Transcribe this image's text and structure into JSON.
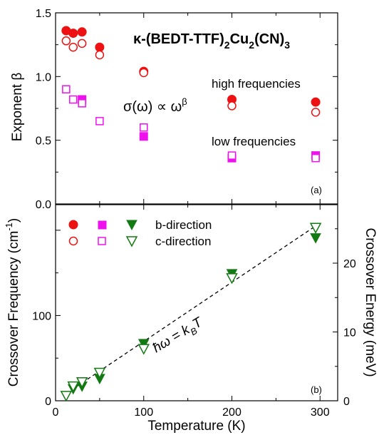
{
  "chart_data": [
    {
      "type": "scatter",
      "panel_label": "(a)",
      "title": "κ-(BEDT-TTF)",
      "title_sub1": "2",
      "title_mid": "Cu",
      "title_sub2": "2",
      "title_tail": "(CN)",
      "title_sub3": "3",
      "ylabel": "Exponent β",
      "ylim": [
        0,
        1.5
      ],
      "yticks": [
        0.0,
        0.5,
        1.0,
        1.5
      ],
      "ytick_labels": [
        "0.0",
        "0.5",
        "1.0",
        "1.5"
      ],
      "xlim": [
        0,
        320
      ],
      "annotations": {
        "high": "high frequencies",
        "low": "low frequencies",
        "formula": "σ(ω) ∝ ω",
        "formula_sup": "β"
      },
      "series": [
        {
          "marker": "circle",
          "fill": "filled",
          "color": "#ee1111",
          "x": [
            12,
            20,
            30,
            50,
            100,
            200,
            295
          ],
          "y": [
            1.36,
            1.34,
            1.35,
            1.23,
            1.04,
            0.82,
            0.8
          ]
        },
        {
          "marker": "circle",
          "fill": "open",
          "color": "#ee1111",
          "x": [
            12,
            20,
            30,
            50,
            100,
            200,
            295
          ],
          "y": [
            1.28,
            1.23,
            1.26,
            1.17,
            1.03,
            0.77,
            0.72
          ]
        },
        {
          "marker": "square",
          "fill": "filled",
          "color": "#ee11ee",
          "x": [
            30,
            100,
            200,
            295
          ],
          "y": [
            0.82,
            0.53,
            0.36,
            0.38
          ]
        },
        {
          "marker": "square",
          "fill": "open",
          "color": "#ee11ee",
          "x": [
            12,
            20,
            30,
            50,
            100,
            200,
            295
          ],
          "y": [
            0.9,
            0.82,
            0.79,
            0.65,
            0.6,
            0.38,
            0.36
          ]
        }
      ]
    },
    {
      "type": "scatter",
      "panel_label": "(b)",
      "xlabel": "Temperature (K)",
      "ylabel": "Crossover Frequency (cm",
      "ylabel_sup": "-1",
      "ylabel_tail": ")",
      "y2label": "Crossover Energy (meV)",
      "xlim": [
        0,
        320
      ],
      "ylim": [
        0,
        230
      ],
      "y2lim": [
        0,
        28.5
      ],
      "xticks": [
        0,
        100,
        200,
        300
      ],
      "xtick_labels": [
        "0",
        "100",
        "200",
        "300"
      ],
      "yticks": [
        0,
        100
      ],
      "ytick_labels": [
        "0",
        "100"
      ],
      "y2ticks": [
        0,
        10,
        20
      ],
      "y2tick_labels": [
        "0",
        "10",
        "20"
      ],
      "legend": {
        "b": "b-direction",
        "c": "c-direction"
      },
      "line_label": "ħω = k",
      "line_label_sub": "B",
      "line_label_tail": "T",
      "fit_line": {
        "x": [
          12,
          295
        ],
        "y": [
          8.5,
          205
        ]
      },
      "series": [
        {
          "name": "b-direction",
          "marker": "triangle-down",
          "fill": "filled",
          "color": "#137a13",
          "x": [
            20,
            30,
            50,
            100,
            200,
            295
          ],
          "y": [
            14,
            17,
            26,
            67,
            149,
            191
          ]
        },
        {
          "name": "c-direction",
          "marker": "triangle-down",
          "fill": "open",
          "color": "#137a13",
          "x": [
            12,
            20,
            30,
            50,
            100,
            200,
            295
          ],
          "y": [
            6,
            17,
            22,
            33,
            61,
            144,
            203
          ]
        }
      ]
    }
  ]
}
